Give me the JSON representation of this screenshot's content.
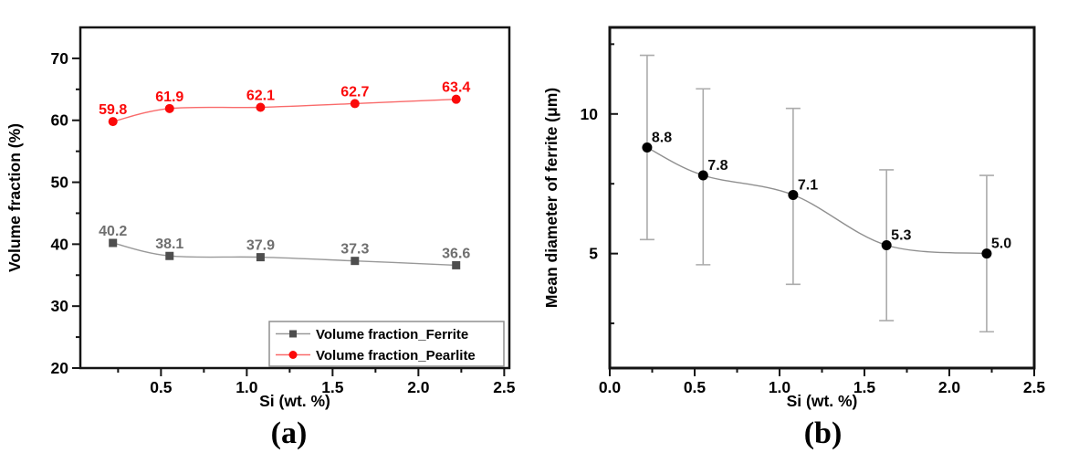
{
  "figure": {
    "background": "#ffffff",
    "panels": [
      {
        "caption": "(a)"
      },
      {
        "caption": "(b)"
      }
    ]
  },
  "chart_data": [
    {
      "panel": "a",
      "type": "line",
      "title": "",
      "xlabel": "Si (wt. %)",
      "ylabel": "Volume fraction (%)",
      "xlim": [
        0.03,
        2.53
      ],
      "ylim": [
        20,
        75
      ],
      "grid": false,
      "x_ticks": {
        "major": [
          0.5,
          1.0,
          1.5,
          2.0,
          2.5
        ],
        "major_labels": [
          "0.5",
          "1.0",
          "1.5",
          "2.0",
          "2.5"
        ],
        "minor": [
          0.25,
          0.75,
          1.25,
          1.75,
          2.25
        ]
      },
      "y_ticks": {
        "major": [
          20,
          30,
          40,
          50,
          60,
          70
        ],
        "major_labels": [
          "20",
          "30",
          "40",
          "50",
          "60",
          "70"
        ],
        "minor": [
          25,
          35,
          45,
          55,
          65
        ]
      },
      "x": [
        0.22,
        0.55,
        1.08,
        1.63,
        2.22
      ],
      "series": [
        {
          "name": "Volume fraction_Ferrite",
          "values": [
            40.2,
            38.1,
            37.9,
            37.3,
            36.6
          ],
          "point_labels": [
            "40.2",
            "38.1",
            "37.9",
            "37.3",
            "36.6"
          ],
          "marker": "square",
          "marker_color": "#4e4e4e",
          "line_color": "#999999",
          "label_color": "#6f6f6f"
        },
        {
          "name": "Volume fraction_Pearlite",
          "values": [
            59.8,
            61.9,
            62.1,
            62.7,
            63.4
          ],
          "point_labels": [
            "59.8",
            "61.9",
            "62.1",
            "62.7",
            "63.4"
          ],
          "marker": "circle",
          "marker_color": "#fb0a0a",
          "line_color": "#f96a6a",
          "label_color": "#fb0a0a"
        }
      ],
      "legend": {
        "position": "bottom-right",
        "entries": [
          "Volume fraction_Ferrite",
          "Volume fraction_Pearlite"
        ],
        "border_color": "#8f8f8f"
      }
    },
    {
      "panel": "b",
      "type": "line",
      "title": "",
      "xlabel": "Si (wt. %)",
      "ylabel": "Mean diameter of ferrite (μm)",
      "xlim": [
        0.0,
        2.5
      ],
      "ylim": [
        0.9,
        13.1
      ],
      "grid": false,
      "x_ticks": {
        "major": [
          0.0,
          0.5,
          1.0,
          1.5,
          2.0,
          2.5
        ],
        "major_labels": [
          "0.0",
          "0.5",
          "1.0",
          "1.5",
          "2.0",
          "2.5"
        ],
        "minor": [
          0.25,
          0.75,
          1.25,
          1.75,
          2.25
        ]
      },
      "y_ticks": {
        "major": [
          5,
          10
        ],
        "major_labels": [
          "5",
          "10"
        ],
        "minor": [
          2.5,
          7.5,
          12.5
        ]
      },
      "x": [
        0.22,
        0.55,
        1.08,
        1.63,
        2.22
      ],
      "series": [
        {
          "values": [
            8.8,
            7.8,
            7.1,
            5.3,
            5.0
          ],
          "point_labels": [
            "8.8",
            "7.8",
            "7.1",
            "5.3",
            "5.0"
          ],
          "err_plus": [
            3.3,
            3.1,
            3.1,
            2.7,
            2.8
          ],
          "err_minus": [
            3.3,
            3.2,
            3.2,
            2.7,
            2.8
          ],
          "marker": "circle",
          "marker_color": "#000000",
          "line_color": "#909090",
          "error_color": "#ababab",
          "label_color": "#0d0d0d"
        }
      ],
      "legend": null
    }
  ]
}
